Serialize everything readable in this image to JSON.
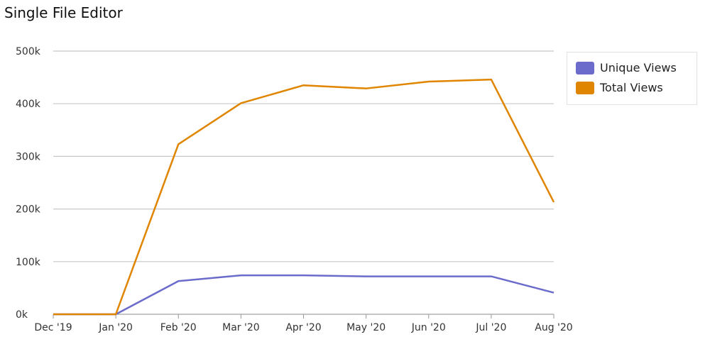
{
  "title": "Single File Editor",
  "chart_data": {
    "type": "line",
    "title": "Single File Editor",
    "xlabel": "",
    "ylabel": "",
    "categories": [
      "Dec '19",
      "Jan '20",
      "Feb '20",
      "Mar '20",
      "Apr '20",
      "May '20",
      "Jun '20",
      "Jul '20",
      "Aug '20"
    ],
    "y_ticks": [
      "0k",
      "100k",
      "200k",
      "300k",
      "400k",
      "500k"
    ],
    "ylim": [
      0,
      500000
    ],
    "grid": true,
    "legend_position": "top-right",
    "series": [
      {
        "name": "Unique Views",
        "color": "#6b6bcc",
        "values": [
          0,
          0,
          63000,
          74000,
          74000,
          72000,
          72000,
          72000,
          41000
        ]
      },
      {
        "name": "Total Views",
        "color": "#e08500",
        "values": [
          0,
          0,
          323000,
          401000,
          435000,
          429000,
          442000,
          446000,
          213000
        ]
      }
    ]
  }
}
